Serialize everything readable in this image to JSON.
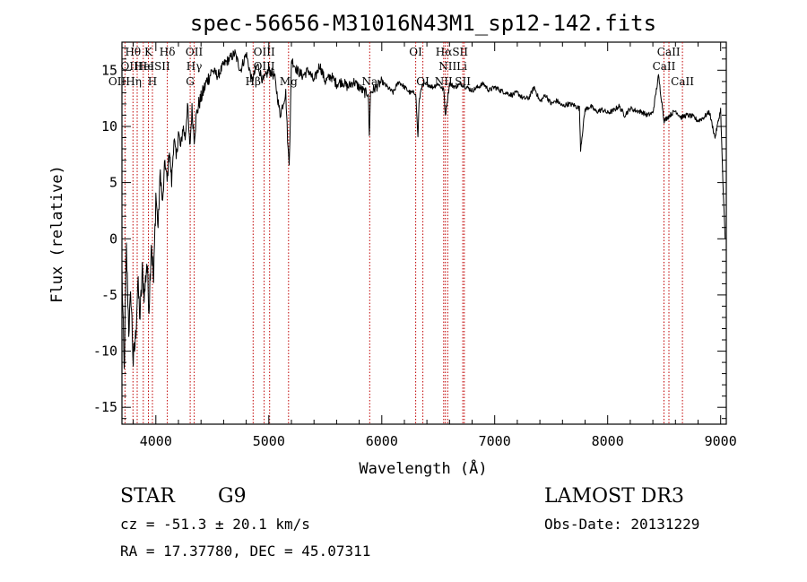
{
  "chart_data": {
    "type": "line",
    "title": "spec-56656-M31016N43M1_sp12-142.fits",
    "xlabel": "Wavelength (Å)",
    "ylabel": "Flux (relative)",
    "xlim": [
      3700,
      9050
    ],
    "ylim": [
      -16.5,
      17.5
    ],
    "xticks": [
      4000,
      5000,
      6000,
      7000,
      8000,
      9000
    ],
    "yticks": [
      -15,
      -10,
      -5,
      0,
      5,
      10,
      15
    ],
    "series": [
      {
        "name": "flux",
        "x": [
          3700,
          3720,
          3740,
          3760,
          3780,
          3800,
          3820,
          3840,
          3860,
          3880,
          3900,
          3920,
          3940,
          3960,
          3980,
          4000,
          4020,
          4040,
          4060,
          4080,
          4100,
          4120,
          4140,
          4160,
          4180,
          4200,
          4220,
          4240,
          4260,
          4280,
          4300,
          4320,
          4340,
          4360,
          4380,
          4400,
          4450,
          4500,
          4550,
          4600,
          4650,
          4700,
          4750,
          4800,
          4850,
          4900,
          4950,
          5000,
          5050,
          5100,
          5150,
          5170,
          5180,
          5190,
          5200,
          5250,
          5300,
          5350,
          5400,
          5450,
          5500,
          5550,
          5600,
          5650,
          5700,
          5750,
          5800,
          5850,
          5880,
          5890,
          5900,
          5950,
          6000,
          6050,
          6100,
          6150,
          6200,
          6250,
          6300,
          6320,
          6330,
          6350,
          6400,
          6450,
          6500,
          6550,
          6563,
          6600,
          6650,
          6700,
          6750,
          6800,
          6850,
          6900,
          6950,
          7000,
          7050,
          7100,
          7150,
          7200,
          7250,
          7300,
          7350,
          7400,
          7450,
          7500,
          7550,
          7600,
          7650,
          7700,
          7750,
          7760,
          7800,
          7850,
          7900,
          7950,
          8000,
          8050,
          8100,
          8150,
          8200,
          8250,
          8300,
          8350,
          8400,
          8450,
          8500,
          8550,
          8600,
          8650,
          8700,
          8750,
          8800,
          8850,
          8900,
          8950,
          9000,
          9020,
          9040
        ],
        "values": [
          -3,
          -12,
          -1,
          -8,
          -5,
          -11,
          -9,
          -4,
          -7,
          -3,
          -5,
          -2,
          -6,
          0,
          -4,
          4,
          1,
          6,
          3,
          7,
          5,
          8,
          5,
          9,
          7,
          9.5,
          8,
          10,
          9,
          12,
          8,
          11.5,
          9,
          11,
          12,
          12.5,
          14,
          15,
          14.5,
          15.5,
          16,
          16.5,
          15,
          16.5,
          14,
          15.5,
          14,
          15,
          14.5,
          11,
          13,
          8,
          7,
          10,
          16,
          15,
          14.5,
          15,
          14,
          15.5,
          14,
          14.5,
          13.8,
          14,
          13.5,
          14,
          13.5,
          13,
          13,
          9,
          13,
          13.5,
          14,
          13.5,
          13,
          14,
          13.5,
          13,
          13,
          9,
          12,
          13.5,
          13.8,
          13.5,
          13.8,
          13.2,
          11,
          13.8,
          13.5,
          13.8,
          13.5,
          13.2,
          13.5,
          13.8,
          13.2,
          13.5,
          13.2,
          13,
          12.8,
          13,
          12.5,
          12.5,
          13.5,
          12.2,
          12.8,
          12,
          12.3,
          11.8,
          12,
          11.9,
          11.6,
          8,
          11.5,
          11.8,
          11.3,
          11.5,
          11.2,
          11.4,
          11.8,
          11,
          11.6,
          11.4,
          11.3,
          11,
          11.2,
          14.5,
          10.5,
          11,
          11.4,
          10.8,
          11,
          10.9,
          10.5,
          10.8,
          11.3,
          9,
          11.5,
          5,
          0
        ]
      }
    ],
    "lines": [
      {
        "label": "Hθ",
        "x": 3798,
        "row": 0
      },
      {
        "label": "K",
        "x": 3934,
        "row": 0
      },
      {
        "label": "Hδ",
        "x": 4102,
        "row": 0
      },
      {
        "label": "OII",
        "x": 4340,
        "row": 0
      },
      {
        "label": "OIII",
        "x": 4960,
        "row": 0
      },
      {
        "label": "OI",
        "x": 6300,
        "row": 0
      },
      {
        "label": "HαSII",
        "x": 6620,
        "row": 0
      },
      {
        "label": "CaII",
        "x": 8540,
        "row": 0
      },
      {
        "label": "OIIHe",
        "x": 3835,
        "row": 1
      },
      {
        "label": "HeISII",
        "x": 3968,
        "row": 1
      },
      {
        "label": "Hγ",
        "x": 4340,
        "row": 1
      },
      {
        "label": "OIII",
        "x": 4959,
        "row": 1
      },
      {
        "label": "NII",
        "x": 6584,
        "row": 1
      },
      {
        "label": "Li",
        "x": 6708,
        "row": 1
      },
      {
        "label": "CaII",
        "x": 8498,
        "row": 1
      },
      {
        "label": "OIIHη",
        "x": 3727,
        "row": 2
      },
      {
        "label": "H",
        "x": 3970,
        "row": 2
      },
      {
        "label": "G",
        "x": 4304,
        "row": 2
      },
      {
        "label": "Hβ",
        "x": 4861,
        "row": 2
      },
      {
        "label": "Mg",
        "x": 5175,
        "row": 2
      },
      {
        "label": "Na",
        "x": 5893,
        "row": 2
      },
      {
        "label": "OI",
        "x": 6364,
        "row": 2
      },
      {
        "label": "NII",
        "x": 6548,
        "row": 2
      },
      {
        "label": "SII",
        "x": 6717,
        "row": 2
      },
      {
        "label": "CaII",
        "x": 8662,
        "row": 2
      }
    ],
    "vlines": [
      3727,
      3798,
      3835,
      3889,
      3934,
      3970,
      4102,
      4304,
      4340,
      4861,
      4959,
      5007,
      5175,
      5893,
      6300,
      6364,
      6548,
      6563,
      6584,
      6717,
      6731,
      8498,
      8542,
      8662
    ]
  },
  "info": {
    "class": "STAR",
    "subclass": "G9",
    "survey": "LAMOST DR3",
    "cz": "cz = -51.3 ± 20.1 km/s",
    "obsdate": "Obs-Date: 20131229",
    "radec": "RA =  17.37780, DEC =  45.07311"
  }
}
